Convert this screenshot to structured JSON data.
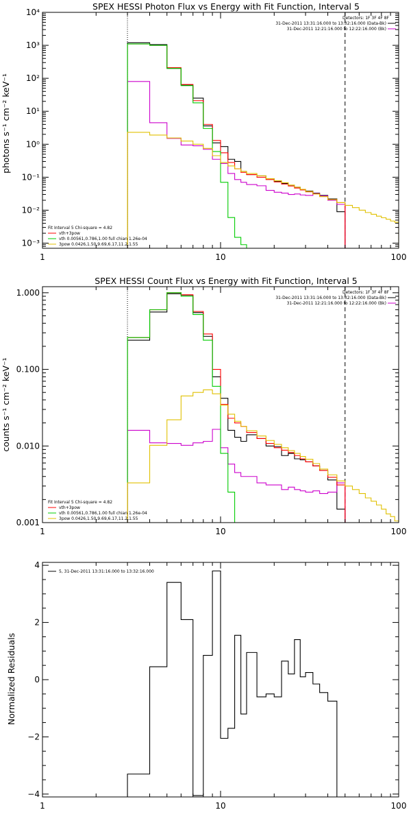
{
  "chart_data": [
    {
      "type": "line",
      "title": "SPEX HESSI Photon Flux vs Energy with Fit Function, Interval 5",
      "ylabel": "photons s⁻¹ cm⁻² keV⁻¹",
      "xlabel": "",
      "xscale": "log",
      "yscale": "log",
      "xlim": [
        1,
        100
      ],
      "ylim": [
        0.0007,
        10000
      ],
      "xticks": [
        1,
        10,
        100
      ],
      "xtick_labels": [
        "1",
        "10",
        "100"
      ],
      "yticks": [
        0.001,
        0.01,
        0.1,
        1,
        10,
        100,
        1000,
        10000
      ],
      "ytick_labels": [
        "10⁻³",
        "10⁻²",
        "10⁻¹",
        "10⁰",
        "10¹",
        "10²",
        "10³",
        "10⁴"
      ],
      "vlines": [
        {
          "x": 3,
          "style": "dotted"
        },
        {
          "x": 50,
          "style": "dashed"
        }
      ],
      "legend_right": {
        "header": "Detectors: 1F 3F 4F 8F",
        "entries": [
          {
            "label": "31-Dec-2011 13:31:16.000 to 13:32:16.000 (Data-Bk)",
            "color": "#000000"
          },
          {
            "label": "31-Dec-2011 12:21:16.000 to 12:22:16.000 (Bk)",
            "color": "#cc00cc"
          }
        ]
      },
      "legend_left": {
        "header": "Fit Interval 5   Chi-square = 4.82",
        "entries": [
          {
            "label": "vth+3pow",
            "color": "#ff0000"
          },
          {
            "label": "vth 0.00561,0.786,1.00  full chian 1.26e-04",
            "color": "#00cc00"
          },
          {
            "label": "3pow 0.0426,1.50,9.69,6.17,11.2,1.55",
            "color": "#e0c000"
          }
        ]
      },
      "series": [
        {
          "name": "Data-Bk",
          "color": "#000000",
          "edges": [
            3,
            4,
            5,
            6,
            7,
            8,
            9,
            10,
            11,
            12,
            13,
            14,
            16,
            18,
            20,
            22,
            24,
            26,
            28,
            30,
            33,
            36,
            40,
            45,
            50
          ],
          "values": [
            1200,
            1050,
            200,
            62,
            25,
            3.6,
            1.1,
            0.85,
            0.35,
            0.3,
            0.15,
            0.12,
            0.11,
            0.09,
            0.075,
            0.065,
            0.057,
            0.05,
            0.043,
            0.038,
            0.033,
            0.028,
            0.022,
            0.009
          ]
        },
        {
          "name": "Bk",
          "color": "#cc00cc",
          "edges": [
            3,
            4,
            5,
            6,
            7,
            8,
            9,
            10,
            11,
            12,
            13,
            14,
            16,
            18,
            20,
            22,
            24,
            26,
            28,
            30,
            33,
            36,
            40,
            45,
            50
          ],
          "values": [
            80,
            4.5,
            1.5,
            0.95,
            0.9,
            0.7,
            0.35,
            0.26,
            0.13,
            0.085,
            0.07,
            0.06,
            0.055,
            0.04,
            0.035,
            0.033,
            0.03,
            0.031,
            0.029,
            0.028,
            0.032,
            0.027,
            0.02,
            0.015
          ]
        },
        {
          "name": "vth+3pow",
          "color": "#ff0000",
          "edges": [
            3,
            4,
            5,
            6,
            7,
            8,
            9,
            10,
            11,
            12,
            13,
            14,
            16,
            18,
            20,
            22,
            24,
            26,
            28,
            30,
            33,
            36,
            40,
            45,
            50
          ],
          "values": [
            1100,
            1000,
            210,
            65,
            21,
            4,
            1.3,
            0.55,
            0.28,
            0.18,
            0.14,
            0.12,
            0.1,
            0.085,
            0.072,
            0.062,
            0.054,
            0.047,
            0.041,
            0.036,
            0.031,
            0.026,
            0.021,
            0.017
          ]
        },
        {
          "name": "vth",
          "color": "#00cc00",
          "edges": [
            3,
            4,
            5,
            6,
            7,
            8,
            9,
            10,
            11,
            12,
            13,
            14
          ],
          "values": [
            1100,
            1000,
            200,
            60,
            18,
            3,
            0.6,
            0.07,
            0.006,
            0.0015,
            0.0009
          ]
        },
        {
          "name": "3pow",
          "color": "#e0c000",
          "edges": [
            3,
            4,
            5,
            6,
            7,
            8,
            9,
            10,
            11,
            12,
            13,
            14,
            16,
            18,
            20,
            22,
            24,
            26,
            28,
            30,
            33,
            36,
            40,
            45,
            50,
            55,
            60,
            65,
            70,
            75,
            80,
            85,
            90,
            95,
            100
          ],
          "values": [
            2.3,
            1.9,
            1.55,
            1.25,
            1.0,
            0.75,
            0.45,
            0.28,
            0.22,
            0.18,
            0.15,
            0.13,
            0.11,
            0.09,
            0.078,
            0.068,
            0.058,
            0.05,
            0.043,
            0.037,
            0.031,
            0.026,
            0.021,
            0.017,
            0.014,
            0.012,
            0.01,
            0.0085,
            0.0075,
            0.0066,
            0.0059,
            0.0053,
            0.0047,
            0.0043
          ]
        }
      ]
    },
    {
      "type": "line",
      "title": "SPEX HESSI Count Flux vs Energy with Fit Function, Interval 5",
      "ylabel": "counts s⁻¹ cm⁻² keV⁻¹",
      "xlabel": "",
      "xscale": "log",
      "yscale": "log",
      "xlim": [
        1,
        100
      ],
      "ylim": [
        0.001,
        1.2
      ],
      "xticks": [
        1,
        10,
        100
      ],
      "xtick_labels": [
        "1",
        "10",
        "100"
      ],
      "yticks": [
        0.001,
        0.01,
        0.1,
        1
      ],
      "ytick_labels": [
        "0.001",
        "0.010",
        "0.100",
        "1.000"
      ],
      "vlines": [
        {
          "x": 3,
          "style": "dotted"
        },
        {
          "x": 50,
          "style": "dashed"
        }
      ],
      "legend_right": {
        "header": "Detectors: 1F 3F 4F 8F",
        "entries": [
          {
            "label": "31-Dec-2011 13:31:16.000 to 13:32:16.000 (Data-Bk)",
            "color": "#000000"
          },
          {
            "label": "31-Dec-2011 12:21:16.000 to 12:22:16.000 (Bk)",
            "color": "#cc00cc"
          }
        ]
      },
      "legend_left": {
        "header": "Fit Interval 5   Chi-square = 4.82",
        "entries": [
          {
            "label": "vth+3pow",
            "color": "#ff0000"
          },
          {
            "label": "vth 0.00561,0.786,1.00  full chian 1.26e-04",
            "color": "#00cc00"
          },
          {
            "label": "3pow 0.0426,1.50,9.69,6.17,11.2,1.55",
            "color": "#e0c000"
          }
        ]
      },
      "series": [
        {
          "name": "Data-Bk",
          "color": "#000000",
          "edges": [
            3,
            4,
            5,
            6,
            7,
            8,
            9,
            10,
            11,
            12,
            13,
            14,
            16,
            18,
            20,
            22,
            24,
            26,
            28,
            30,
            33,
            36,
            40,
            45,
            50
          ],
          "values": [
            0.24,
            0.56,
            0.97,
            0.93,
            0.55,
            0.27,
            0.08,
            0.042,
            0.016,
            0.013,
            0.0115,
            0.014,
            0.0125,
            0.01,
            0.0098,
            0.0075,
            0.008,
            0.0068,
            0.0066,
            0.0062,
            0.0055,
            0.0048,
            0.0036,
            0.0015
          ]
        },
        {
          "name": "Bk",
          "color": "#cc00cc",
          "edges": [
            3,
            4,
            5,
            6,
            7,
            8,
            9,
            10,
            11,
            12,
            13,
            14,
            16,
            18,
            20,
            22,
            24,
            26,
            28,
            30,
            33,
            36,
            40,
            45,
            50
          ],
          "values": [
            0.016,
            0.011,
            0.0108,
            0.0102,
            0.011,
            0.0115,
            0.0165,
            0.0095,
            0.0058,
            0.0045,
            0.004,
            0.004,
            0.0033,
            0.0031,
            0.0031,
            0.0027,
            0.0029,
            0.0027,
            0.0026,
            0.0025,
            0.0026,
            0.0024,
            0.0025,
            0.0033
          ]
        },
        {
          "name": "vth+3pow",
          "color": "#ff0000",
          "edges": [
            3,
            4,
            5,
            6,
            7,
            8,
            9,
            10,
            11,
            12,
            13,
            14,
            16,
            18,
            20,
            22,
            24,
            26,
            28,
            30,
            33,
            36,
            40,
            45,
            50
          ],
          "values": [
            0.26,
            0.6,
            1.0,
            0.94,
            0.57,
            0.29,
            0.1,
            0.035,
            0.023,
            0.02,
            0.018,
            0.015,
            0.0125,
            0.0108,
            0.0095,
            0.0088,
            0.0082,
            0.0075,
            0.0068,
            0.0062,
            0.0055,
            0.0048,
            0.0039,
            0.0031
          ]
        },
        {
          "name": "vth",
          "color": "#00cc00",
          "edges": [
            3,
            4,
            5,
            6,
            7,
            8,
            9,
            10,
            11,
            12,
            13
          ],
          "values": [
            0.26,
            0.6,
            1.0,
            0.9,
            0.52,
            0.24,
            0.06,
            0.008,
            0.0025,
            0.0009
          ]
        },
        {
          "name": "3pow",
          "color": "#e0c000",
          "edges": [
            3,
            4,
            5,
            6,
            7,
            8,
            9,
            10,
            11,
            12,
            13,
            14,
            16,
            18,
            20,
            22,
            24,
            26,
            28,
            30,
            33,
            36,
            40,
            45,
            50,
            55,
            60,
            65,
            70,
            75,
            80,
            85,
            90,
            95,
            100
          ],
          "values": [
            0.0033,
            0.0102,
            0.022,
            0.045,
            0.05,
            0.054,
            0.048,
            0.034,
            0.026,
            0.021,
            0.018,
            0.0158,
            0.0135,
            0.0118,
            0.0105,
            0.0095,
            0.0087,
            0.008,
            0.0073,
            0.0067,
            0.0059,
            0.005,
            0.0042,
            0.0035,
            0.003,
            0.0027,
            0.0024,
            0.0021,
            0.0019,
            0.0017,
            0.0015,
            0.0013,
            0.0012,
            0.00105
          ]
        }
      ]
    },
    {
      "type": "line",
      "title": "",
      "ylabel": "Normalized Residuals",
      "xlabel": "",
      "xscale": "log",
      "yscale": "linear",
      "xlim": [
        1,
        100
      ],
      "ylim": [
        -4.1,
        4.1
      ],
      "xticks": [
        1,
        10,
        100
      ],
      "xtick_labels": [
        "1",
        "10",
        "100"
      ],
      "yticks": [
        -4,
        -2,
        0,
        2,
        4
      ],
      "ytick_labels": [
        "−4",
        "−2",
        "0",
        "2",
        "4"
      ],
      "legend": {
        "entries": [
          {
            "label": "5, 31-Dec-2011 13:31:16.000 to 13:32:16.000",
            "color": "#000000"
          }
        ]
      },
      "series": [
        {
          "name": "5, 31-Dec-2011 13:31:16.000 to 13:32:16.000",
          "color": "#000000",
          "edges": [
            3,
            4,
            5,
            6,
            7,
            8,
            9,
            10,
            11,
            12,
            13,
            14,
            16,
            18,
            20,
            22,
            24,
            26,
            28,
            30,
            33,
            36,
            40,
            45,
            50
          ],
          "values": [
            -3.3,
            0.45,
            3.4,
            2.1,
            -4.05,
            0.85,
            3.8,
            -2.05,
            -1.7,
            1.55,
            -1.2,
            0.95,
            -0.6,
            -0.5,
            -0.6,
            0.65,
            0.2,
            1.4,
            0.1,
            0.25,
            -0.15,
            -0.45,
            -0.75,
            -4.1
          ]
        }
      ]
    }
  ]
}
